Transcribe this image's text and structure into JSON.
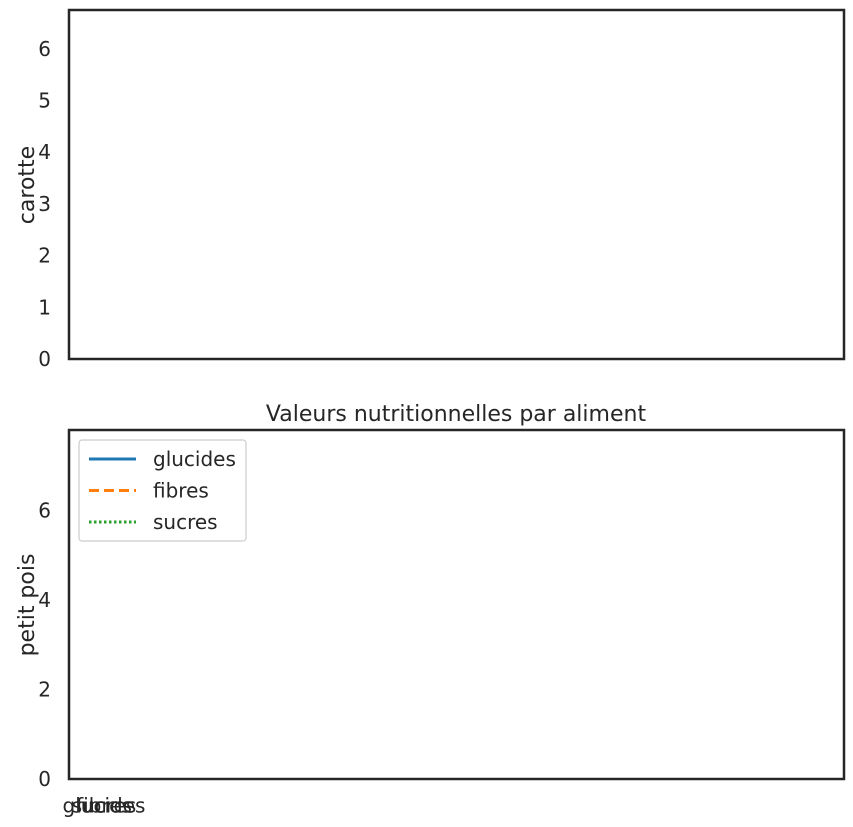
{
  "chart_data": [
    {
      "type": "line",
      "title": "",
      "ylabel": "carotte",
      "ylim": [
        0,
        6.75
      ],
      "yticks": [
        0,
        1,
        2,
        3,
        4,
        5,
        6
      ],
      "xticks": [],
      "grid": false,
      "series": []
    },
    {
      "type": "line",
      "title": "Valeurs nutritionnelles par aliment",
      "ylabel": "petit pois",
      "ylim": [
        0,
        7.8
      ],
      "yticks": [
        0,
        2,
        4,
        6
      ],
      "xtick_labels": [
        "glucides",
        "fibres",
        "sucres"
      ],
      "grid": false,
      "legend_position": "top-left",
      "legend": [
        {
          "name": "glucides",
          "color": "#1f77b4",
          "style": "solid"
        },
        {
          "name": "fibres",
          "color": "#ff7f0e",
          "style": "dashed"
        },
        {
          "name": "sucres",
          "color": "#2ca02c",
          "style": "dotted"
        }
      ],
      "series": []
    }
  ]
}
